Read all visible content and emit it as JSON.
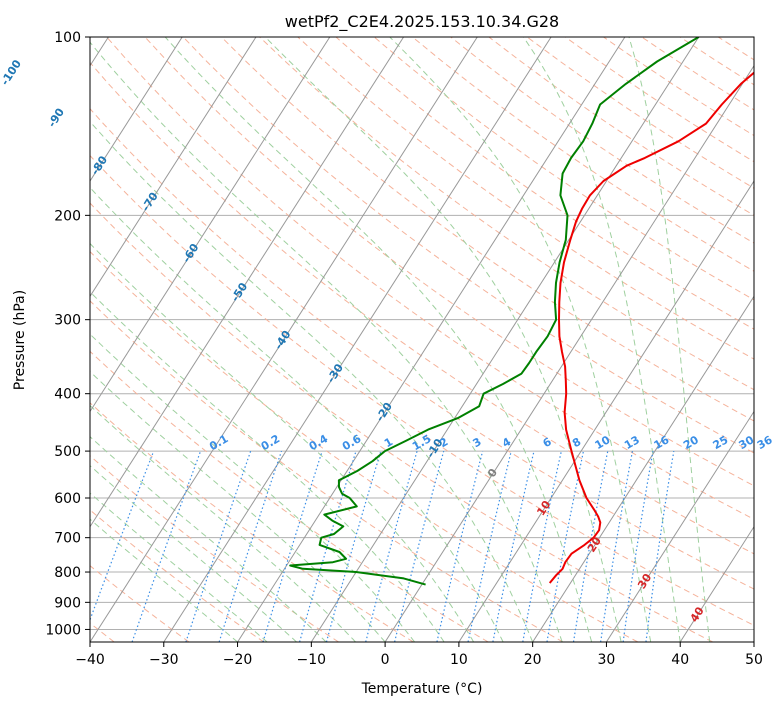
{
  "chart_data": {
    "type": "line",
    "title": "wetPf2_C2E4.2025.153.10.34.G28",
    "xlabel": "Temperature (°C)",
    "ylabel": "Pressure (hPa)",
    "xlim": [
      -40,
      50
    ],
    "ylim": [
      1050,
      100
    ],
    "y_scale": "log",
    "grid": true,
    "x_ticks": [
      "−40",
      "−30",
      "−20",
      "−10",
      "0",
      "10",
      "20",
      "30",
      "40",
      "50"
    ],
    "y_ticks": [
      "100",
      "200",
      "300",
      "400",
      "500",
      "600",
      "700",
      "800",
      "900",
      "1000"
    ],
    "series": [
      {
        "name": "",
        "color": "#ee0000",
        "pressure": [
          835,
          810,
          790,
          770,
          745,
          720,
          700,
          680,
          660,
          645,
          630,
          600,
          560,
          500,
          460,
          430,
          400,
          380,
          360,
          340,
          320,
          300,
          280,
          260,
          240,
          220,
          205,
          195,
          185,
          175,
          165,
          160,
          150,
          140,
          130,
          120,
          110,
          100
        ],
        "temperature": [
          17.2,
          17.4,
          17.7,
          17.5,
          17.6,
          18.6,
          19.2,
          19.3,
          18.8,
          18.0,
          17.0,
          14.8,
          12.3,
          8.7,
          6.1,
          4.4,
          3.0,
          1.8,
          0.5,
          -1.2,
          -2.9,
          -4.4,
          -5.9,
          -7.4,
          -8.7,
          -9.8,
          -10.6,
          -10.9,
          -11.0,
          -10.4,
          -8.6,
          -6.8,
          -3.7,
          -1.5,
          -1.0,
          -0.2,
          1.4,
          2.5
        ]
      },
      {
        "name": "",
        "color": "#008000",
        "pressure": [
          840,
          820,
          800,
          790,
          780,
          770,
          760,
          740,
          720,
          700,
          690,
          670,
          655,
          640,
          620,
          600,
          590,
          575,
          560,
          540,
          520,
          500,
          480,
          460,
          440,
          420,
          400,
          385,
          370,
          355,
          340,
          320,
          300,
          280,
          260,
          240,
          220,
          200,
          185,
          170,
          160,
          150,
          140,
          130,
          120,
          110,
          100
        ],
        "temperature": [
          0.5,
          -3.0,
          -10.0,
          -17.5,
          -19.5,
          -14.0,
          -12.5,
          -14.0,
          -17.3,
          -17.7,
          -16.3,
          -15.7,
          -17.7,
          -19.3,
          -15.6,
          -17.3,
          -18.7,
          -19.7,
          -20.3,
          -18.6,
          -17.4,
          -16.6,
          -14.6,
          -12.6,
          -9.6,
          -7.7,
          -8.2,
          -6.4,
          -4.8,
          -4.7,
          -4.7,
          -4.5,
          -4.8,
          -6.5,
          -8.0,
          -9.3,
          -10.4,
          -12.3,
          -15.0,
          -16.6,
          -16.8,
          -16.6,
          -16.9,
          -17.5,
          -15.8,
          -13.5,
          -10.0
        ]
      }
    ],
    "reference_lines": {
      "isotherms_color": "#999999",
      "dry_adiabats_color": "#f5b39b",
      "moist_adiabats_color": "#9fd09f",
      "mixing_ratio_color": "#3a8ee6",
      "lcl_curve_color": "#d9c09a"
    },
    "isotherm_labels": [
      "-100",
      "-90",
      "-80",
      "-70",
      "-60",
      "-50",
      "-40",
      "-30",
      "-20",
      "-10",
      "0",
      "10",
      "20",
      "30",
      "40"
    ],
    "isotherm_label_colors": {
      "cold": "#1f77b4",
      "zero": "#808080",
      "warm": "#d62728"
    },
    "isotherm_label_values": [
      -100,
      -90,
      -80,
      -70,
      -60,
      -50,
      -40,
      -30,
      -20,
      -10,
      0,
      10,
      20,
      30,
      40
    ],
    "isotherm_label_pressures": [
      115,
      137,
      165,
      190,
      232,
      270,
      325,
      370,
      430,
      495,
      545,
      625,
      720,
      830,
      945
    ],
    "mixing_ratio_labels": [
      "0.1",
      "0.2",
      "0.4",
      "0.6",
      "1",
      "1.5",
      "2",
      "3",
      "4",
      "6",
      "8",
      "10",
      "13",
      "16",
      "20",
      "25",
      "30",
      "36"
    ],
    "mixing_ratio_values": [
      0.1,
      0.2,
      0.4,
      0.6,
      1,
      1.5,
      2,
      3,
      4,
      6,
      8,
      10,
      13,
      16,
      20,
      25,
      30,
      36
    ],
    "mixing_ratio_label_temps": [
      -22.5,
      -15.5,
      -9.0,
      -4.5,
      0.5,
      5.0,
      8.0,
      12.5,
      16.5,
      22.0,
      26.0,
      29.5,
      33.5,
      37.5,
      41.5,
      45.5,
      49.0,
      51.5
    ]
  }
}
